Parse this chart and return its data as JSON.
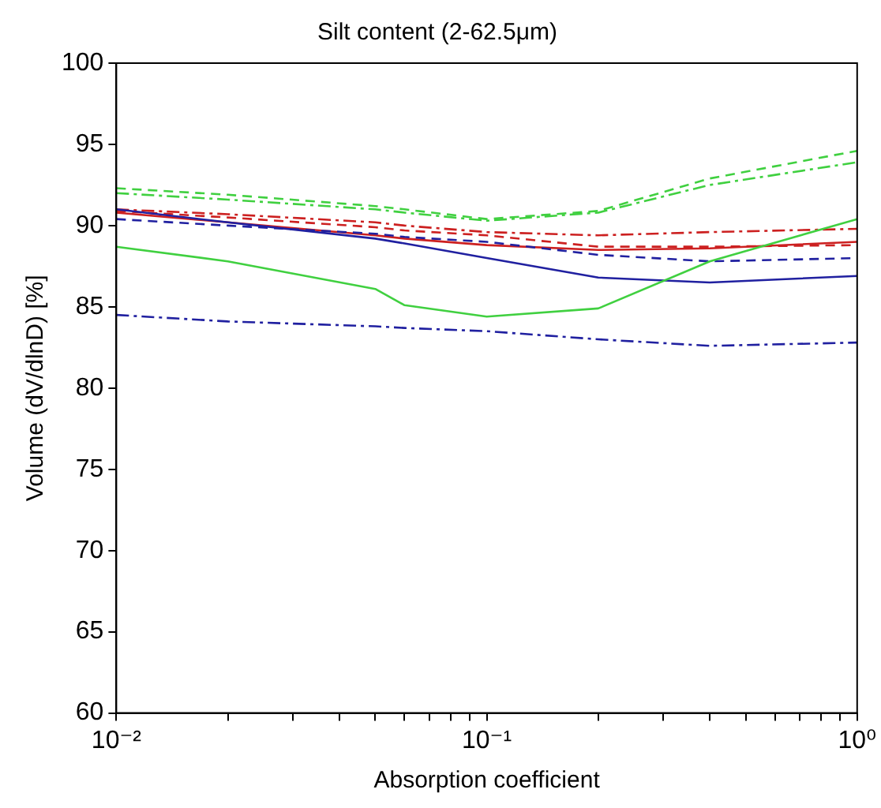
{
  "chart_data": {
    "type": "line",
    "title": "Silt content (2-62.5μm)",
    "xlabel": "Absorption coefficient",
    "ylabel": "Volume (dV/dlnD) [%]",
    "log": "x",
    "grid": false,
    "legend": false,
    "marker": "none",
    "x": [
      0.01,
      0.02,
      0.05,
      0.06,
      0.1,
      0.2,
      0.4,
      1
    ],
    "xlim": [
      0.01,
      1
    ],
    "xticks": [
      {
        "value": 0.01,
        "label": "10⁻²"
      },
      {
        "value": 0.02,
        "label": null
      },
      {
        "value": 0.03,
        "label": null
      },
      {
        "value": 0.04,
        "label": null
      },
      {
        "value": 0.05,
        "label": null
      },
      {
        "value": 0.06,
        "label": null
      },
      {
        "value": 0.07,
        "label": null
      },
      {
        "value": 0.08,
        "label": null
      },
      {
        "value": 0.09,
        "label": null
      },
      {
        "value": 0.1,
        "label": "10⁻¹"
      },
      {
        "value": 0.2,
        "label": null
      },
      {
        "value": 0.3,
        "label": null
      },
      {
        "value": 0.4,
        "label": null
      },
      {
        "value": 0.5,
        "label": null
      },
      {
        "value": 0.6,
        "label": null
      },
      {
        "value": 0.7,
        "label": null
      },
      {
        "value": 0.8,
        "label": null
      },
      {
        "value": 0.9,
        "label": null
      },
      {
        "value": 1,
        "label": "10⁰"
      }
    ],
    "ylim": [
      60,
      100
    ],
    "yticks": [
      60,
      65,
      70,
      75,
      80,
      85,
      90,
      95,
      100
    ],
    "series": [
      {
        "color": "#40d040",
        "line_style": "solid",
        "values": [
          88.7,
          87.8,
          86.1,
          85.1,
          84.4,
          84.9,
          87.8,
          90.4
        ]
      },
      {
        "color": "#40d040",
        "line_style": "dashed",
        "values": [
          92.3,
          91.9,
          91.2,
          91.0,
          90.4,
          90.9,
          92.9,
          94.6
        ]
      },
      {
        "color": "#40d040",
        "line_style": "dashdot",
        "values": [
          92.0,
          91.6,
          91.0,
          90.8,
          90.3,
          90.8,
          92.5,
          93.9
        ]
      },
      {
        "color": "#2020a0",
        "line_style": "solid",
        "values": [
          91.0,
          90.2,
          89.2,
          88.9,
          88.0,
          86.8,
          86.5,
          86.9
        ]
      },
      {
        "color": "#2020a0",
        "line_style": "dashed",
        "values": [
          90.4,
          90.0,
          89.5,
          89.3,
          89.0,
          88.2,
          87.8,
          88.0
        ]
      },
      {
        "color": "#2020a0",
        "line_style": "dashdot",
        "values": [
          84.5,
          84.1,
          83.8,
          83.7,
          83.5,
          83.0,
          82.6,
          82.8
        ]
      },
      {
        "color": "#cc2020",
        "line_style": "solid",
        "values": [
          90.8,
          90.2,
          89.4,
          89.2,
          88.8,
          88.5,
          88.6,
          89.0
        ]
      },
      {
        "color": "#cc2020",
        "line_style": "dashed",
        "values": [
          90.9,
          90.5,
          89.9,
          89.7,
          89.4,
          88.7,
          88.7,
          88.8
        ]
      },
      {
        "color": "#cc2020",
        "line_style": "dashdot",
        "values": [
          91.0,
          90.7,
          90.2,
          90.0,
          89.6,
          89.4,
          89.6,
          89.8
        ]
      }
    ]
  }
}
